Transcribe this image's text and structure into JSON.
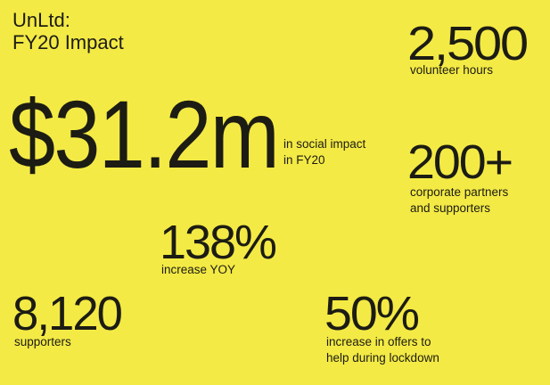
{
  "header": {
    "title_lines": [
      "UnLtd:",
      "FY20 Impact"
    ]
  },
  "stats": [
    {
      "value": "$31.2m",
      "caption_lines": [
        "in social impact",
        "in FY20"
      ]
    },
    {
      "value": "2,500",
      "caption_lines": [
        "volunteer hours"
      ]
    },
    {
      "value": "200+",
      "caption_lines": [
        "corporate partners",
        "and supporters"
      ]
    },
    {
      "value": "138%",
      "caption_lines": [
        "increase YOY"
      ]
    },
    {
      "value": "8,120",
      "caption_lines": [
        "supporters"
      ]
    },
    {
      "value": "50%",
      "caption_lines": [
        "increase in offers to",
        "help during lockdown"
      ]
    }
  ]
}
